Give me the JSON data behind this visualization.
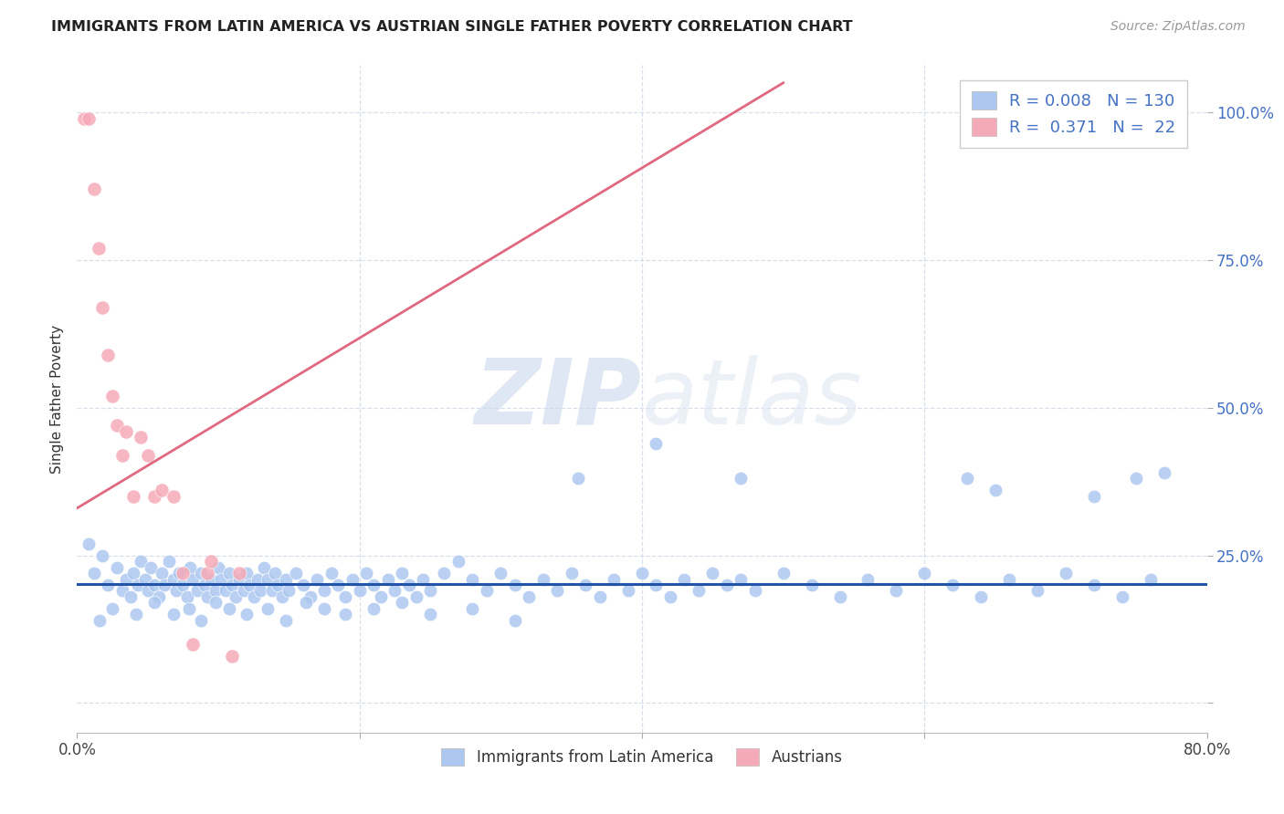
{
  "title": "IMMIGRANTS FROM LATIN AMERICA VS AUSTRIAN SINGLE FATHER POVERTY CORRELATION CHART",
  "source": "Source: ZipAtlas.com",
  "ylabel": "Single Father Poverty",
  "xlim": [
    0.0,
    0.8
  ],
  "ylim": [
    -0.05,
    1.08
  ],
  "blue_R": 0.008,
  "blue_N": 130,
  "pink_R": 0.371,
  "pink_N": 22,
  "blue_color": "#adc8f0",
  "pink_color": "#f5aab8",
  "blue_line_color": "#2255aa",
  "pink_line_color": "#e06880",
  "legend_blue_color": "#adc8f0",
  "legend_pink_color": "#f5aab8",
  "watermark_zip": "ZIP",
  "watermark_atlas": "atlas",
  "blue_scatter_x": [
    0.008,
    0.012,
    0.018,
    0.022,
    0.028,
    0.032,
    0.035,
    0.038,
    0.04,
    0.043,
    0.045,
    0.048,
    0.05,
    0.052,
    0.055,
    0.058,
    0.06,
    0.062,
    0.065,
    0.068,
    0.07,
    0.072,
    0.075,
    0.078,
    0.08,
    0.082,
    0.085,
    0.088,
    0.09,
    0.092,
    0.095,
    0.098,
    0.1,
    0.102,
    0.105,
    0.108,
    0.11,
    0.112,
    0.115,
    0.118,
    0.12,
    0.122,
    0.125,
    0.128,
    0.13,
    0.132,
    0.135,
    0.138,
    0.14,
    0.142,
    0.145,
    0.148,
    0.15,
    0.155,
    0.16,
    0.165,
    0.17,
    0.175,
    0.18,
    0.185,
    0.19,
    0.195,
    0.2,
    0.205,
    0.21,
    0.215,
    0.22,
    0.225,
    0.23,
    0.235,
    0.24,
    0.245,
    0.25,
    0.26,
    0.27,
    0.28,
    0.29,
    0.3,
    0.31,
    0.32,
    0.33,
    0.34,
    0.35,
    0.36,
    0.37,
    0.38,
    0.39,
    0.4,
    0.41,
    0.42,
    0.43,
    0.44,
    0.45,
    0.46,
    0.47,
    0.48,
    0.5,
    0.52,
    0.54,
    0.56,
    0.58,
    0.6,
    0.62,
    0.64,
    0.66,
    0.68,
    0.7,
    0.72,
    0.74,
    0.76,
    0.016,
    0.025,
    0.042,
    0.055,
    0.068,
    0.079,
    0.088,
    0.098,
    0.108,
    0.12,
    0.135,
    0.148,
    0.162,
    0.175,
    0.19,
    0.21,
    0.23,
    0.25,
    0.28,
    0.31
  ],
  "blue_scatter_y": [
    0.27,
    0.22,
    0.25,
    0.2,
    0.23,
    0.19,
    0.21,
    0.18,
    0.22,
    0.2,
    0.24,
    0.21,
    0.19,
    0.23,
    0.2,
    0.18,
    0.22,
    0.2,
    0.24,
    0.21,
    0.19,
    0.22,
    0.2,
    0.18,
    0.23,
    0.21,
    0.19,
    0.22,
    0.2,
    0.18,
    0.21,
    0.19,
    0.23,
    0.21,
    0.19,
    0.22,
    0.2,
    0.18,
    0.21,
    0.19,
    0.22,
    0.2,
    0.18,
    0.21,
    0.19,
    0.23,
    0.21,
    0.19,
    0.22,
    0.2,
    0.18,
    0.21,
    0.19,
    0.22,
    0.2,
    0.18,
    0.21,
    0.19,
    0.22,
    0.2,
    0.18,
    0.21,
    0.19,
    0.22,
    0.2,
    0.18,
    0.21,
    0.19,
    0.22,
    0.2,
    0.18,
    0.21,
    0.19,
    0.22,
    0.24,
    0.21,
    0.19,
    0.22,
    0.2,
    0.18,
    0.21,
    0.19,
    0.22,
    0.2,
    0.18,
    0.21,
    0.19,
    0.22,
    0.2,
    0.18,
    0.21,
    0.19,
    0.22,
    0.2,
    0.21,
    0.19,
    0.22,
    0.2,
    0.18,
    0.21,
    0.19,
    0.22,
    0.2,
    0.18,
    0.21,
    0.19,
    0.22,
    0.2,
    0.18,
    0.21,
    0.14,
    0.16,
    0.15,
    0.17,
    0.15,
    0.16,
    0.14,
    0.17,
    0.16,
    0.15,
    0.16,
    0.14,
    0.17,
    0.16,
    0.15,
    0.16,
    0.17,
    0.15,
    0.16,
    0.14
  ],
  "blue_outlier_x": [
    0.41,
    0.355,
    0.47,
    0.63,
    0.65,
    0.72,
    0.75,
    0.77
  ],
  "blue_outlier_y": [
    0.44,
    0.38,
    0.38,
    0.38,
    0.36,
    0.35,
    0.38,
    0.39
  ],
  "pink_scatter_x": [
    0.005,
    0.008,
    0.012,
    0.015,
    0.018,
    0.022,
    0.025,
    0.028,
    0.032,
    0.035,
    0.04,
    0.045,
    0.05,
    0.055,
    0.06,
    0.068,
    0.075,
    0.082,
    0.092,
    0.095,
    0.11,
    0.115
  ],
  "pink_scatter_y": [
    0.99,
    0.99,
    0.87,
    0.77,
    0.67,
    0.59,
    0.52,
    0.47,
    0.42,
    0.46,
    0.35,
    0.45,
    0.42,
    0.35,
    0.36,
    0.35,
    0.22,
    0.1,
    0.22,
    0.24,
    0.08,
    0.22
  ],
  "pink_line_x0": 0.0,
  "pink_line_x1": 0.5,
  "pink_line_y0": 0.33,
  "pink_line_y1": 1.05,
  "blue_line_y": 0.202,
  "grid_color": "#d5dce8",
  "grid_linestyle": "--"
}
